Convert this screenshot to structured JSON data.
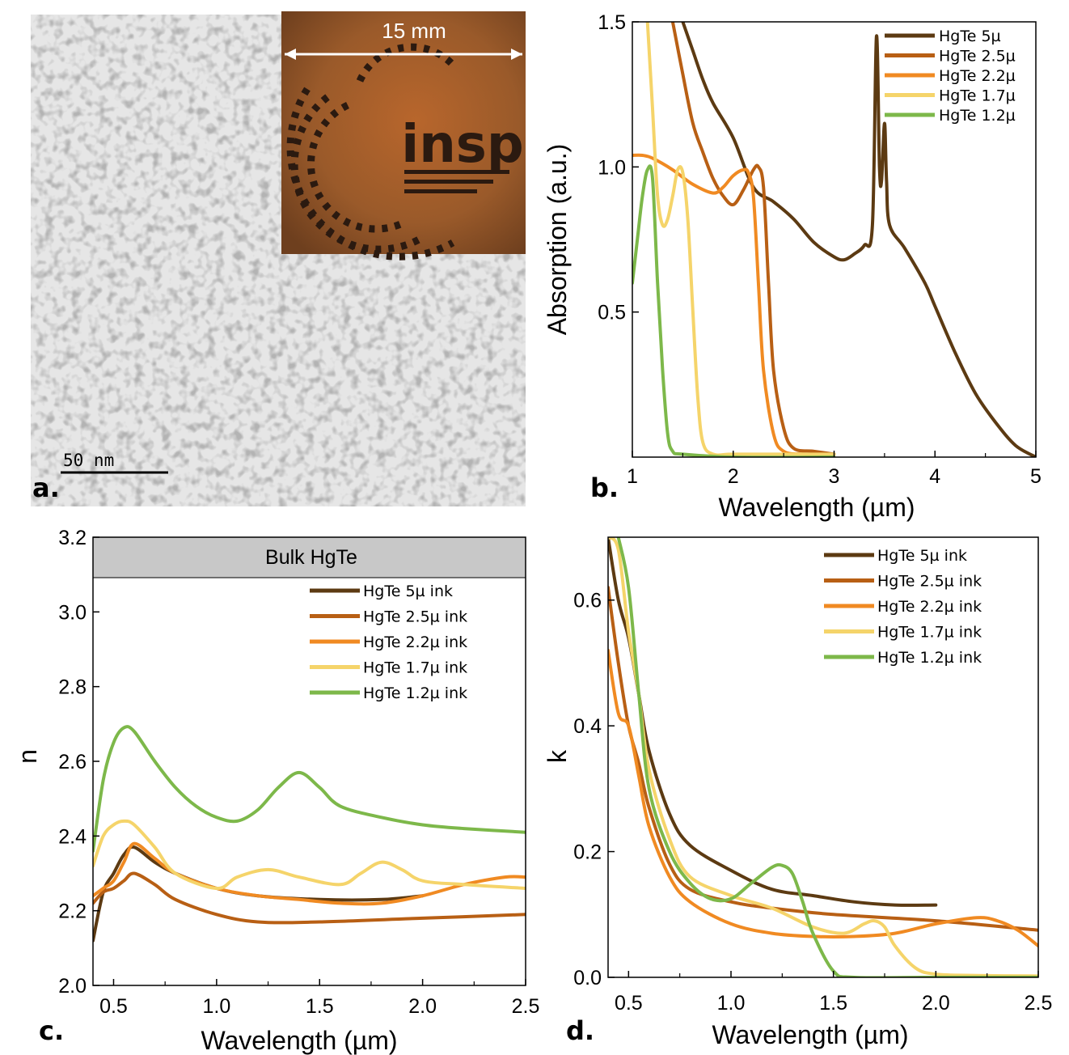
{
  "figure": {
    "panel_a": {
      "letter": "a.",
      "scale_bar_label": "50 nm",
      "inset_dimension_label": "15 mm",
      "inset_logo_text": "insp"
    },
    "panel_b": {
      "letter": "b."
    },
    "panel_c": {
      "letter": "c.",
      "banner": "Bulk HgTe"
    },
    "panel_d": {
      "letter": "d."
    }
  },
  "chart_data": [
    {
      "panel": "b",
      "type": "line",
      "xlabel": "Wavelength (µm)",
      "ylabel": "Absorption (a.u.)",
      "xlim": [
        1,
        5
      ],
      "ylim": [
        0,
        1.5
      ],
      "xticks": [
        "1",
        "2",
        "3",
        "4",
        "5"
      ],
      "yticks": [
        "0.5",
        "1.0",
        "1.5"
      ],
      "legend_position": "top-right",
      "series": [
        {
          "name": "HgTe    5µ",
          "color": "#5c3a12",
          "x": [
            1.5,
            1.6,
            1.7,
            1.8,
            2.0,
            2.2,
            2.4,
            2.6,
            2.8,
            3.0,
            3.1,
            3.2,
            3.3,
            3.38,
            3.42,
            3.45,
            3.47,
            3.5,
            3.52,
            3.55,
            3.7,
            3.9,
            4.0,
            4.2,
            4.4,
            4.6,
            4.8,
            5.0
          ],
          "y": [
            1.5,
            1.4,
            1.3,
            1.22,
            1.1,
            0.93,
            0.88,
            0.82,
            0.74,
            0.69,
            0.68,
            0.7,
            0.73,
            0.8,
            1.45,
            1.0,
            0.95,
            1.15,
            0.95,
            0.8,
            0.72,
            0.6,
            0.52,
            0.36,
            0.22,
            0.12,
            0.04,
            0.0
          ]
        },
        {
          "name": "HgTe 2.5µ",
          "color": "#b85f14",
          "x": [
            1.4,
            1.5,
            1.6,
            1.7,
            1.8,
            1.9,
            2.0,
            2.1,
            2.2,
            2.25,
            2.3,
            2.35,
            2.4,
            2.5,
            2.6,
            2.8,
            3.0
          ],
          "y": [
            1.5,
            1.32,
            1.15,
            1.05,
            0.96,
            0.9,
            0.87,
            0.92,
            0.99,
            1.0,
            0.93,
            0.6,
            0.3,
            0.1,
            0.03,
            0.02,
            0.01
          ]
        },
        {
          "name": "HgTe 2.2µ",
          "color": "#f08a22",
          "x": [
            1.0,
            1.1,
            1.2,
            1.4,
            1.6,
            1.8,
            1.9,
            2.0,
            2.1,
            2.15,
            2.2,
            2.25,
            2.3,
            2.4,
            2.5,
            2.7,
            3.0
          ],
          "y": [
            1.04,
            1.04,
            1.03,
            0.99,
            0.94,
            0.91,
            0.93,
            0.97,
            0.99,
            0.98,
            0.9,
            0.6,
            0.3,
            0.08,
            0.02,
            0.01,
            0.01
          ]
        },
        {
          "name": "HgTe 1.7µ",
          "color": "#f5d46a",
          "x": [
            1.15,
            1.2,
            1.25,
            1.3,
            1.35,
            1.4,
            1.45,
            1.5,
            1.55,
            1.6,
            1.65,
            1.7,
            1.8,
            2.0,
            2.5,
            3.0
          ],
          "y": [
            1.5,
            1.2,
            0.9,
            0.8,
            0.82,
            0.9,
            0.99,
            0.98,
            0.82,
            0.5,
            0.2,
            0.05,
            0.01,
            0.01,
            0.01,
            0.01
          ]
        },
        {
          "name": "HgTe 1.2µ",
          "color": "#7db84a",
          "x": [
            1.0,
            1.05,
            1.1,
            1.15,
            1.2,
            1.25,
            1.3,
            1.35,
            1.4,
            1.5,
            2.0,
            3.0
          ],
          "y": [
            0.6,
            0.75,
            0.9,
            0.99,
            0.96,
            0.6,
            0.3,
            0.08,
            0.02,
            0.01,
            0.0,
            0.0
          ]
        }
      ]
    },
    {
      "panel": "c",
      "type": "line",
      "xlabel": "Wavelength (µm)",
      "ylabel": "n",
      "xlim": [
        0.4,
        2.5
      ],
      "ylim": [
        2.0,
        3.2
      ],
      "xticks": [
        "0.5",
        "1.0",
        "1.5",
        "2.0",
        "2.5"
      ],
      "yticks": [
        "2.0",
        "2.2",
        "2.4",
        "2.6",
        "2.8",
        "3.0",
        "3.2"
      ],
      "legend_position": "top-right",
      "series": [
        {
          "name": "HgTe 5µ ink",
          "color": "#5c3a12",
          "x": [
            0.4,
            0.45,
            0.5,
            0.55,
            0.6,
            0.7,
            0.8,
            1.0,
            1.2,
            1.5,
            1.8,
            2.0
          ],
          "y": [
            2.12,
            2.25,
            2.3,
            2.35,
            2.37,
            2.33,
            2.3,
            2.26,
            2.24,
            2.23,
            2.23,
            2.24
          ]
        },
        {
          "name": "HgTe 2.5µ ink",
          "color": "#b85f14",
          "x": [
            0.4,
            0.45,
            0.5,
            0.55,
            0.6,
            0.7,
            0.8,
            1.0,
            1.2,
            1.5,
            2.0,
            2.5
          ],
          "y": [
            2.22,
            2.25,
            2.26,
            2.28,
            2.3,
            2.27,
            2.23,
            2.19,
            2.17,
            2.17,
            2.18,
            2.19
          ]
        },
        {
          "name": "HgTe 2.2µ ink",
          "color": "#f08a22",
          "x": [
            0.4,
            0.45,
            0.5,
            0.55,
            0.6,
            0.7,
            0.8,
            1.0,
            1.2,
            1.4,
            1.6,
            1.8,
            2.0,
            2.2,
            2.4,
            2.5
          ],
          "y": [
            2.24,
            2.26,
            2.28,
            2.33,
            2.38,
            2.34,
            2.3,
            2.26,
            2.24,
            2.23,
            2.22,
            2.22,
            2.24,
            2.27,
            2.29,
            2.29
          ]
        },
        {
          "name": "HgTe 1.7µ ink",
          "color": "#f5d46a",
          "x": [
            0.4,
            0.45,
            0.5,
            0.55,
            0.6,
            0.7,
            0.8,
            1.0,
            1.1,
            1.25,
            1.4,
            1.6,
            1.7,
            1.8,
            1.9,
            2.0,
            2.2,
            2.5
          ],
          "y": [
            2.32,
            2.4,
            2.43,
            2.44,
            2.43,
            2.37,
            2.3,
            2.26,
            2.29,
            2.31,
            2.29,
            2.27,
            2.3,
            2.33,
            2.31,
            2.28,
            2.27,
            2.26
          ]
        },
        {
          "name": "HgTe 1.2µ ink",
          "color": "#7db84a",
          "x": [
            0.4,
            0.45,
            0.5,
            0.55,
            0.6,
            0.7,
            0.8,
            0.9,
            1.0,
            1.1,
            1.2,
            1.3,
            1.4,
            1.5,
            1.6,
            1.8,
            2.0,
            2.2,
            2.5
          ],
          "y": [
            2.36,
            2.55,
            2.65,
            2.69,
            2.68,
            2.6,
            2.53,
            2.48,
            2.45,
            2.44,
            2.47,
            2.53,
            2.57,
            2.53,
            2.48,
            2.45,
            2.43,
            2.42,
            2.41
          ]
        }
      ]
    },
    {
      "panel": "d",
      "type": "line",
      "xlabel": "Wavelength (µm)",
      "ylabel": "k",
      "xlim": [
        0.4,
        2.5
      ],
      "ylim": [
        0.0,
        0.7
      ],
      "xticks": [
        "0.5",
        "1.0",
        "1.5",
        "2.0",
        "2.5"
      ],
      "yticks": [
        "0.0",
        "0.2",
        "0.4",
        "0.6"
      ],
      "legend_position": "top-right",
      "series": [
        {
          "name": "HgTe 5µ ink",
          "color": "#5c3a12",
          "x": [
            0.4,
            0.45,
            0.5,
            0.55,
            0.6,
            0.7,
            0.8,
            1.0,
            1.2,
            1.4,
            1.6,
            1.8,
            2.0
          ],
          "y": [
            0.7,
            0.6,
            0.54,
            0.45,
            0.36,
            0.26,
            0.21,
            0.17,
            0.14,
            0.13,
            0.12,
            0.115,
            0.115
          ]
        },
        {
          "name": "HgTe 2.5µ ink",
          "color": "#b85f14",
          "x": [
            0.4,
            0.45,
            0.5,
            0.55,
            0.6,
            0.7,
            0.8,
            1.0,
            1.2,
            1.5,
            2.0,
            2.5
          ],
          "y": [
            0.62,
            0.5,
            0.4,
            0.34,
            0.27,
            0.18,
            0.14,
            0.12,
            0.11,
            0.1,
            0.09,
            0.075
          ]
        },
        {
          "name": "HgTe 2.2µ ink",
          "color": "#f08a22",
          "x": [
            0.4,
            0.45,
            0.5,
            0.55,
            0.6,
            0.7,
            0.8,
            1.0,
            1.2,
            1.4,
            1.6,
            1.8,
            2.0,
            2.2,
            2.3,
            2.4,
            2.5
          ],
          "y": [
            0.52,
            0.42,
            0.4,
            0.32,
            0.24,
            0.16,
            0.12,
            0.085,
            0.07,
            0.065,
            0.065,
            0.07,
            0.085,
            0.095,
            0.09,
            0.075,
            0.05
          ]
        },
        {
          "name": "HgTe 1.7µ ink",
          "color": "#f5d46a",
          "x": [
            0.4,
            0.45,
            0.5,
            0.55,
            0.6,
            0.7,
            0.8,
            1.0,
            1.2,
            1.4,
            1.55,
            1.65,
            1.7,
            1.75,
            1.8,
            1.9,
            2.0,
            2.2,
            2.5
          ],
          "y": [
            0.7,
            0.68,
            0.55,
            0.45,
            0.33,
            0.22,
            0.16,
            0.13,
            0.11,
            0.08,
            0.07,
            0.085,
            0.09,
            0.08,
            0.05,
            0.015,
            0.005,
            0.003,
            0.002
          ]
        },
        {
          "name": "HgTe 1.2µ ink",
          "color": "#7db84a",
          "x": [
            0.45,
            0.5,
            0.55,
            0.6,
            0.7,
            0.8,
            0.9,
            1.0,
            1.1,
            1.2,
            1.25,
            1.3,
            1.35,
            1.4,
            1.5,
            1.6,
            2.0,
            2.5
          ],
          "y": [
            0.7,
            0.62,
            0.45,
            0.3,
            0.2,
            0.15,
            0.125,
            0.125,
            0.15,
            0.175,
            0.178,
            0.165,
            0.12,
            0.07,
            0.01,
            0.0,
            0.0,
            0.0
          ]
        }
      ]
    }
  ]
}
